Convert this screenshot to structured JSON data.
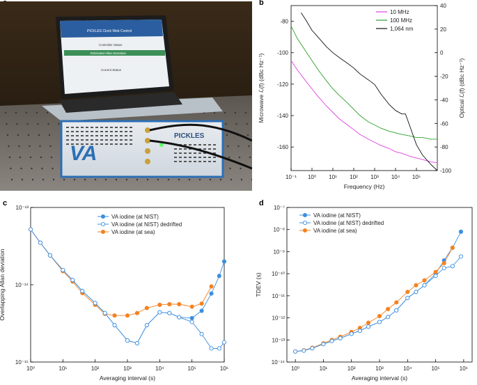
{
  "panels": {
    "a": "a",
    "b": "b",
    "c": "c",
    "d": "d"
  },
  "photo": {
    "laptop_banner": "PICKLES Clock Web Control",
    "laptop_rows": [
      "Controller Status",
      "Estimated Allan Deviation",
      "Current Status"
    ],
    "device_logo": "VA",
    "device_name": "PICKLES"
  },
  "chart_data": [
    {
      "id": "b",
      "type": "line",
      "title": "",
      "xlabel": "Frequency (Hz)",
      "ylabel": "Microwave ℒ(f) (dBc Hz⁻¹)",
      "y2label": "Optical ℒ(f) (dBc Hz⁻¹)",
      "xscale": "log",
      "xlim": [
        0.1,
        1000000
      ],
      "ylim": [
        -175,
        -70
      ],
      "y2lim": [
        -100,
        40
      ],
      "xticks": [
        "10⁻¹",
        "10⁰",
        "10¹",
        "10²",
        "10³",
        "10⁴",
        "10⁵"
      ],
      "yticks": [
        -80,
        -100,
        -120,
        -140,
        -160
      ],
      "y2ticks": [
        40,
        20,
        0,
        -20,
        -40,
        -60,
        -80,
        -100
      ],
      "legend": "top-right",
      "series": [
        {
          "name": "10 MHz",
          "color": "#e040e0",
          "axis": "left",
          "x": [
            0.1,
            0.2,
            0.5,
            1,
            2,
            5,
            10,
            20,
            50,
            100,
            200,
            500,
            1000,
            2000,
            5000,
            10000,
            20000,
            50000,
            100000,
            200000,
            500000,
            1000000
          ],
          "y": [
            -105,
            -111,
            -118,
            -123,
            -128,
            -134,
            -138,
            -142,
            -146,
            -149,
            -152,
            -155,
            -157,
            -159,
            -161,
            -163,
            -164,
            -166,
            -167,
            -168,
            -169.5,
            -170
          ]
        },
        {
          "name": "100 MHz",
          "color": "#2ca02c",
          "axis": "left",
          "x": [
            0.1,
            0.2,
            0.5,
            1,
            2,
            5,
            10,
            20,
            50,
            100,
            200,
            500,
            1000,
            2000,
            5000,
            10000,
            20000,
            50000,
            100000,
            200000,
            500000,
            1000000
          ],
          "y": [
            -83,
            -91,
            -99,
            -105,
            -111,
            -118,
            -123,
            -127,
            -132,
            -136,
            -140,
            -144,
            -146,
            -148,
            -150,
            -151,
            -152,
            -153,
            -154,
            -154,
            -155,
            -155
          ]
        },
        {
          "name": "1,064 nm",
          "color": "#111111",
          "axis": "right",
          "x": [
            0.3,
            0.5,
            1,
            2,
            5,
            10,
            20,
            50,
            100,
            200,
            500,
            1000,
            2000,
            5000,
            10000,
            20000,
            30000,
            50000,
            100000,
            200000,
            500000,
            1000000
          ],
          "y": [
            34,
            28,
            19,
            13,
            5,
            0,
            -4,
            -9,
            -13,
            -18,
            -23,
            -27,
            -35,
            -44,
            -49,
            -52,
            -52,
            -63,
            -78,
            -87,
            -95,
            -100
          ]
        }
      ]
    },
    {
      "id": "c",
      "type": "line",
      "title": "",
      "xlabel": "Averaging interval (s)",
      "ylabel": "Overlapping Allan deviation",
      "xscale": "log",
      "yscale": "log",
      "xlim": [
        1,
        1000000
      ],
      "ylim": [
        1e-15,
        1e-13
      ],
      "xticks": [
        "10⁰",
        "10¹",
        "10²",
        "10³",
        "10⁴",
        "10⁵",
        "10⁶"
      ],
      "yticks": [
        "10⁻¹³",
        "10⁻¹⁴",
        "10⁻¹⁵"
      ],
      "legend": "top-center",
      "series": [
        {
          "name": "VA iodine (at NIST)",
          "color": "#3b8fe0",
          "marker": "filled-circle",
          "x": [
            1,
            2,
            4,
            10,
            20,
            40,
            100,
            200,
            400,
            1000,
            2000,
            4000,
            10000,
            20000,
            40000,
            100000,
            200000,
            400000,
            700000,
            1000000
          ],
          "y": [
            5.2e-14,
            3.5e-14,
            2.4e-14,
            1.55e-14,
            1.15e-14,
            8.3e-15,
            5.8e-15,
            4.3e-15,
            3e-15,
            1.9e-15,
            1.75e-15,
            3e-15,
            4.4e-15,
            4.3e-15,
            3.8e-15,
            3.7e-15,
            4.6e-15,
            7.7e-15,
            1.3e-14,
            2e-14
          ]
        },
        {
          "name": "VA iodine (at NIST) dedrifted",
          "color": "#3b8fe0",
          "marker": "open-circle",
          "x": [
            1,
            2,
            4,
            10,
            20,
            40,
            100,
            200,
            400,
            1000,
            2000,
            4000,
            10000,
            20000,
            40000,
            100000,
            200000,
            400000,
            700000,
            1000000
          ],
          "y": [
            5.2e-14,
            3.5e-14,
            2.4e-14,
            1.55e-14,
            1.15e-14,
            8.3e-15,
            5.8e-15,
            4.3e-15,
            3e-15,
            1.9e-15,
            1.75e-15,
            3e-15,
            4.4e-15,
            4.3e-15,
            3.8e-15,
            3.3e-15,
            2.3e-15,
            1.5e-15,
            1.5e-15,
            1.8e-15
          ]
        },
        {
          "name": "VA iodine (at sea)",
          "color": "#f58220",
          "marker": "filled-circle",
          "x": [
            1,
            2,
            4,
            10,
            20,
            40,
            100,
            200,
            400,
            1000,
            2000,
            4000,
            10000,
            20000,
            40000,
            100000,
            200000,
            400000
          ],
          "y": [
            5.2e-14,
            3.5e-14,
            2.4e-14,
            1.5e-14,
            1.1e-14,
            7.8e-15,
            5.5e-15,
            4.2e-15,
            4e-15,
            4e-15,
            4.3e-15,
            5e-15,
            5.5e-15,
            5.6e-15,
            5.6e-15,
            5.2e-15,
            5.7e-15,
            9.5e-15
          ]
        }
      ]
    },
    {
      "id": "d",
      "type": "line",
      "title": "",
      "xlabel": "Averaging interval (s)",
      "ylabel": "TDEV (s)",
      "xscale": "log",
      "yscale": "log",
      "xlim": [
        0.5,
        2000000
      ],
      "ylim": [
        1e-14,
        1e-07
      ],
      "xticks": [
        "10⁰",
        "10¹",
        "10²",
        "10³",
        "10⁴",
        "10⁵",
        "10⁶"
      ],
      "yticks": [
        "10⁻⁷",
        "10⁻⁸",
        "10⁻⁹",
        "10⁻¹⁰",
        "10⁻¹¹",
        "10⁻¹²",
        "10⁻¹³",
        "10⁻¹⁴"
      ],
      "legend": "top-left",
      "series": [
        {
          "name": "VA iodine (at NIST)",
          "color": "#3b8fe0",
          "marker": "filled-circle",
          "x": [
            1,
            2,
            4,
            10,
            20,
            40,
            100,
            200,
            400,
            1000,
            2000,
            4000,
            10000,
            20000,
            40000,
            100000,
            200000,
            400000,
            800000
          ],
          "y": [
            3e-14,
            3.3e-14,
            4.2e-14,
            6.5e-14,
            9e-14,
            1.2e-13,
            1.9e-13,
            2.6e-13,
            4e-13,
            6.5e-13,
            1.1e-12,
            2.2e-12,
            8e-12,
            1.5e-11,
            3e-11,
            1e-10,
            4e-10,
            1.5e-09,
            8e-09
          ]
        },
        {
          "name": "VA iodine (at NIST) dedrifted",
          "color": "#3b8fe0",
          "marker": "open-circle",
          "x": [
            1,
            2,
            4,
            10,
            20,
            40,
            100,
            200,
            400,
            1000,
            2000,
            4000,
            10000,
            20000,
            40000,
            100000,
            200000,
            400000,
            800000
          ],
          "y": [
            3e-14,
            3.3e-14,
            4.2e-14,
            6.5e-14,
            9e-14,
            1.2e-13,
            1.9e-13,
            2.6e-13,
            4e-13,
            6.5e-13,
            1.1e-12,
            2.2e-12,
            8e-12,
            1.5e-11,
            3e-11,
            8e-11,
            1.8e-10,
            2.2e-10,
            6e-10
          ]
        },
        {
          "name": "VA iodine (at sea)",
          "color": "#f58220",
          "marker": "filled-circle",
          "x": [
            1,
            2,
            4,
            10,
            20,
            40,
            100,
            200,
            400,
            1000,
            2000,
            4000,
            10000,
            20000,
            40000,
            100000,
            200000,
            400000
          ],
          "y": [
            3e-14,
            3.4e-14,
            4.4e-14,
            7e-14,
            1e-13,
            1.4e-13,
            2.3e-13,
            3.5e-13,
            6e-13,
            1.2e-12,
            2.5e-12,
            5e-12,
            1.5e-11,
            3e-11,
            5e-11,
            1.2e-10,
            3e-10,
            1.5e-09
          ]
        }
      ]
    }
  ]
}
